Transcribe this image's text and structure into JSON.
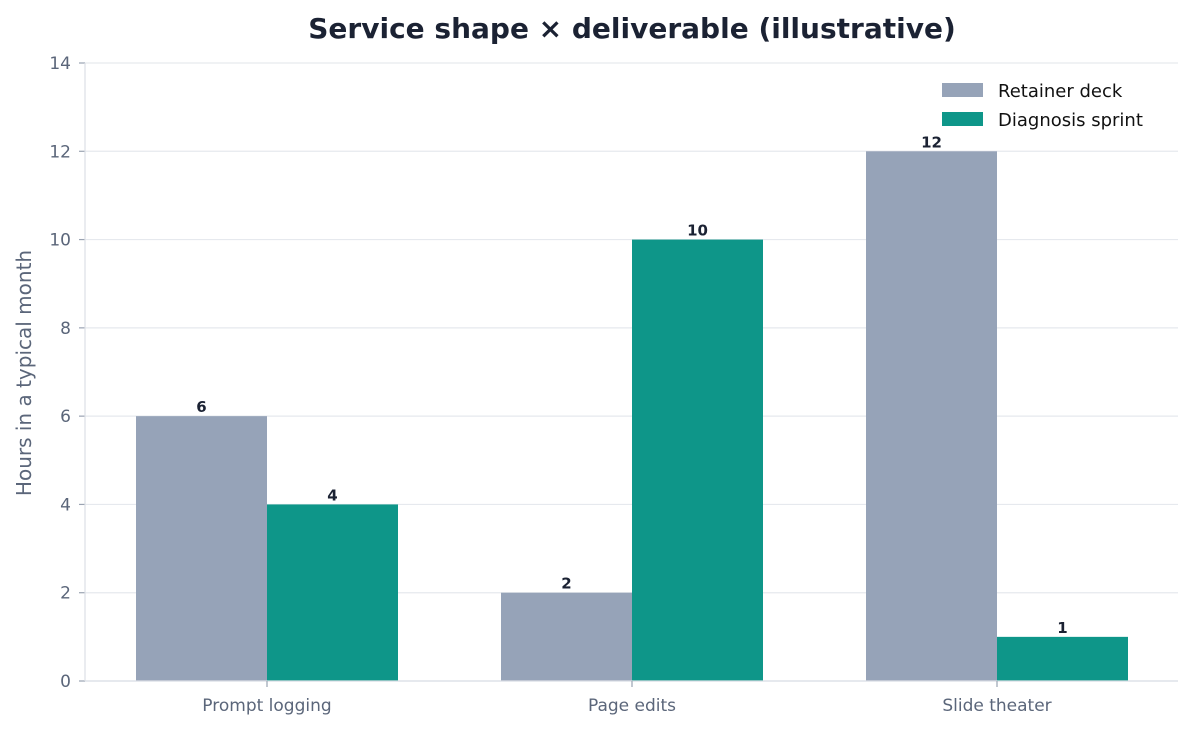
{
  "chart_data": {
    "type": "bar",
    "title": "Service shape × deliverable (illustrative)",
    "xlabel": "",
    "ylabel": "Hours in a typical month",
    "categories": [
      "Prompt logging",
      "Page edits",
      "Slide theater"
    ],
    "series": [
      {
        "name": "Retainer deck",
        "values": [
          6,
          2,
          12
        ],
        "color": "#96a3b8"
      },
      {
        "name": "Diagnosis sprint",
        "values": [
          4,
          10,
          1
        ],
        "color": "#0e9689"
      }
    ],
    "ylim": [
      0,
      14
    ],
    "yticks": [
      0,
      2,
      4,
      6,
      8,
      10,
      12,
      14
    ],
    "grid": true,
    "legend": "top-right",
    "colors": {
      "text": "#1b2233",
      "muted": "#5b667a",
      "grid": "#e6e9ee",
      "axis": "#dcdfe5"
    }
  }
}
